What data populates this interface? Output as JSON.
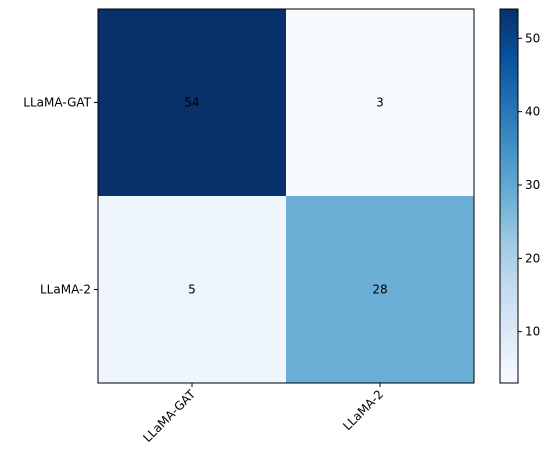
{
  "chart_data": {
    "type": "heatmap",
    "rows": [
      "LLaMA-GAT",
      "LLaMA-2"
    ],
    "columns": [
      "LLaMA-GAT",
      "LLaMA-2"
    ],
    "values": [
      [
        54,
        3
      ],
      [
        5,
        28
      ]
    ],
    "colormap": "Blues",
    "colorbar": {
      "range": [
        3,
        54
      ],
      "ticks": [
        10,
        20,
        30,
        40,
        50
      ]
    },
    "cell_colors": {
      "54": "#08306b",
      "3": "#f7fbff",
      "5": "#eef5fc",
      "28": "#6baed6"
    }
  }
}
